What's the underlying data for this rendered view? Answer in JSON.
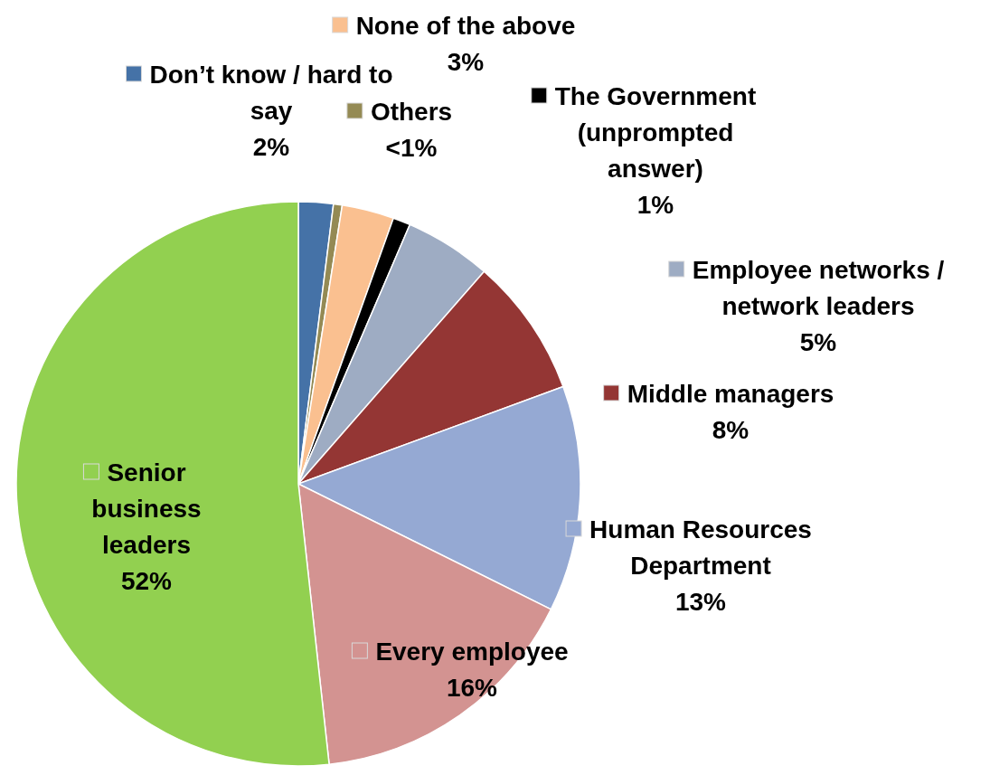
{
  "chart_data": {
    "type": "pie",
    "categories": [
      "Don’t know / hard to say",
      "Others",
      "None of the above",
      "The Government (unprompted answer)",
      "Employee networks / network leaders",
      "Middle managers",
      "Human Resources Department",
      "Every employee",
      "Senior business leaders"
    ],
    "values": [
      2,
      0.5,
      3,
      1,
      5,
      8,
      13,
      16,
      52
    ],
    "value_labels": [
      "2%",
      "<1%",
      "3%",
      "1%",
      "5%",
      "8%",
      "13%",
      "16%",
      "52%"
    ],
    "legend": "right",
    "colors": [
      "#4572a7",
      "#948a54",
      "#fac090",
      "#000000",
      "#9eacc3",
      "#943634",
      "#95a9d3",
      "#d39391",
      "#92d050"
    ]
  }
}
